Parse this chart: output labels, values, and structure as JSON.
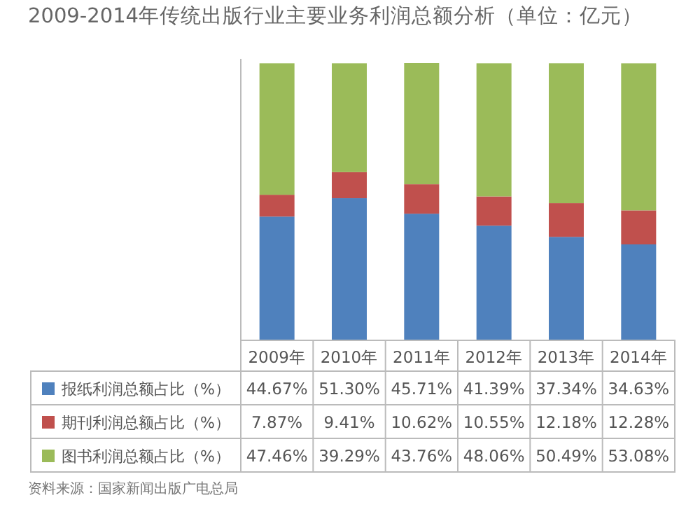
{
  "chart_data": {
    "type": "bar",
    "stacked": true,
    "title": "2009-2014年传统出版行业主要业务利润总额分析（单位：亿元）",
    "categories": [
      "2009年",
      "2010年",
      "2011年",
      "2012年",
      "2013年",
      "2014年"
    ],
    "series": [
      {
        "name": "报纸利润总额占比（%）",
        "color": "#4f81bd",
        "values": [
          44.67,
          51.3,
          45.71,
          41.39,
          37.34,
          34.63
        ],
        "value_labels": [
          "44.67%",
          "51.30%",
          "45.71%",
          "41.39%",
          "37.34%",
          "34.63%"
        ]
      },
      {
        "name": "期刊利润总额占比（%）",
        "color": "#c0504d",
        "values": [
          7.87,
          9.41,
          10.62,
          10.55,
          12.18,
          12.28
        ],
        "value_labels": [
          "7.87%",
          "9.41%",
          "10.62%",
          "10.55%",
          "12.18%",
          "12.28%"
        ]
      },
      {
        "name": "图书利润总额占比（%）",
        "color": "#9bbb59",
        "values": [
          47.46,
          39.29,
          43.76,
          48.06,
          50.49,
          53.08
        ],
        "value_labels": [
          "47.46%",
          "39.29%",
          "43.76%",
          "48.06%",
          "50.49%",
          "53.08%"
        ]
      }
    ],
    "legend": "bottom",
    "annotations": [
      "资料来源：国家新闻出版广电总局"
    ]
  }
}
